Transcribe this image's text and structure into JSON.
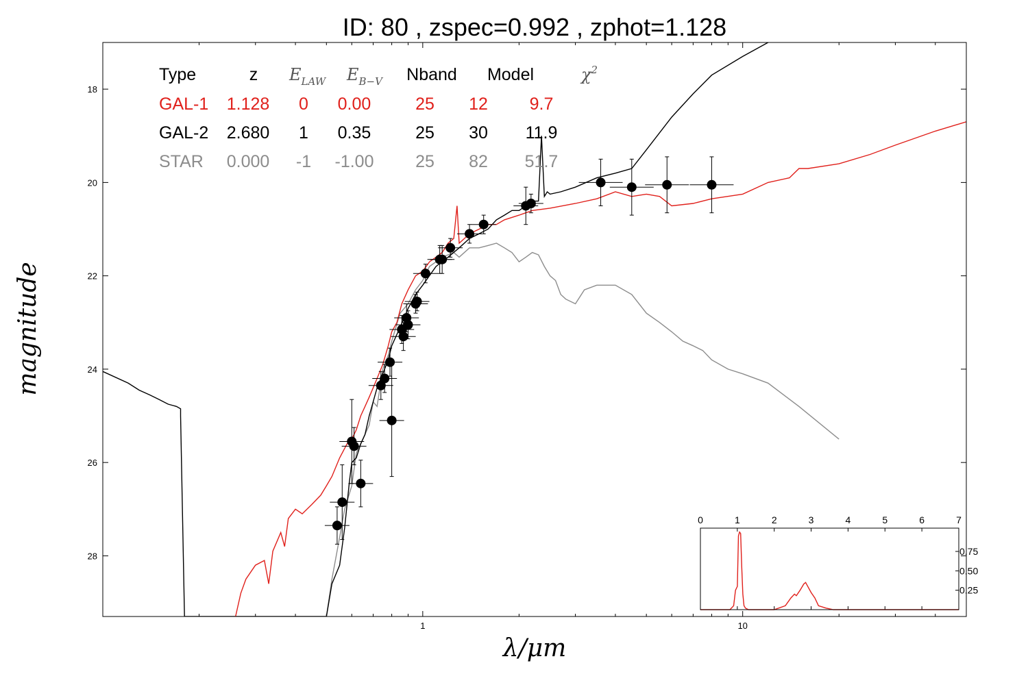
{
  "title": "ID:  80    , zspec=0.992 , zphot=1.128",
  "colors": {
    "gal1": "#e0201b",
    "gal2": "#000000",
    "star": "#8c8c8c",
    "points": "#000000"
  },
  "chart_data": [
    {
      "type": "line",
      "title": "ID:  80    , zspec=0.992 , zphot=1.128",
      "xlabel": "λ/μm",
      "ylabel": "magnitude",
      "xscale": "log",
      "xlim": [
        0.1,
        50
      ],
      "ylim": [
        29.3,
        17.0
      ],
      "x_ticks": [
        {
          "value": 1,
          "label": "1"
        },
        {
          "value": 10,
          "label": "10"
        }
      ],
      "y_ticks": [
        {
          "value": 18,
          "label": "18"
        },
        {
          "value": 20,
          "label": "20"
        },
        {
          "value": 22,
          "label": "22"
        },
        {
          "value": 24,
          "label": "24"
        },
        {
          "value": 26,
          "label": "26"
        },
        {
          "value": 28,
          "label": "28"
        }
      ],
      "grid": false,
      "legend_table": {
        "headers": [
          "Type",
          "z",
          "E_LAW",
          "E_B-V",
          "Nband",
          "Model",
          "χ²"
        ],
        "rows": [
          {
            "type": "GAL-1",
            "z": "1.128",
            "elaw": "0",
            "ebv": "0.00",
            "nband": "25",
            "model": "12",
            "chi2": "9.7",
            "color": "#e0201b"
          },
          {
            "type": "GAL-2",
            "z": "2.680",
            "elaw": "1",
            "ebv": "0.35",
            "nband": "25",
            "model": "30",
            "chi2": "11.9",
            "color": "#000000"
          },
          {
            "type": "STAR",
            "z": "0.000",
            "elaw": "-1",
            "ebv": "-1.00",
            "nband": "25",
            "model": "82",
            "chi2": "51.7",
            "color": "#8c8c8c"
          }
        ]
      },
      "series": [
        {
          "name": "GAL-1",
          "color": "#e0201b",
          "x": [
            0.26,
            0.27,
            0.28,
            0.3,
            0.32,
            0.33,
            0.34,
            0.36,
            0.37,
            0.38,
            0.4,
            0.42,
            0.45,
            0.48,
            0.5,
            0.52,
            0.55,
            0.58,
            0.6,
            0.62,
            0.64,
            0.66,
            0.68,
            0.7,
            0.72,
            0.75,
            0.78,
            0.8,
            0.83,
            0.86,
            0.9,
            0.95,
            1.0,
            1.05,
            1.1,
            1.15,
            1.2,
            1.25,
            1.28,
            1.3,
            1.35,
            1.4,
            1.5,
            1.6,
            1.7,
            1.8,
            2.0,
            2.2,
            2.5,
            3.0,
            3.5,
            4.0,
            4.5,
            5.0,
            5.5,
            6.0,
            7.0,
            8.0,
            10.0,
            12.0,
            14.0,
            15.0,
            16.0,
            20.0,
            25.0,
            30.0,
            40.0,
            50.0
          ],
          "y": [
            29.3,
            28.8,
            28.5,
            28.2,
            28.1,
            28.6,
            27.9,
            27.5,
            27.8,
            27.2,
            27.0,
            27.1,
            26.9,
            26.7,
            26.5,
            26.3,
            25.9,
            25.6,
            25.5,
            25.3,
            25.0,
            24.8,
            24.6,
            24.4,
            24.2,
            23.9,
            23.5,
            23.2,
            23.0,
            22.6,
            22.3,
            22.0,
            21.9,
            21.7,
            21.6,
            21.5,
            21.3,
            21.2,
            20.5,
            21.3,
            21.2,
            21.1,
            21.0,
            20.9,
            20.9,
            20.8,
            20.7,
            20.6,
            20.55,
            20.45,
            20.35,
            20.2,
            20.3,
            20.25,
            20.3,
            20.5,
            20.45,
            20.35,
            20.25,
            20.0,
            19.9,
            19.7,
            19.7,
            19.6,
            19.4,
            19.2,
            18.9,
            18.7
          ]
        },
        {
          "name": "GAL-2",
          "color": "#000000",
          "x": [
            0.1,
            0.12,
            0.13,
            0.14,
            0.15,
            0.16,
            0.17,
            0.175,
            0.175,
            0.18,
            0.19,
            0.5,
            0.52,
            0.55,
            0.57,
            0.59,
            0.6,
            0.62,
            0.64,
            0.66,
            0.68,
            0.7,
            0.72,
            0.75,
            0.78,
            0.8,
            0.85,
            0.9,
            0.95,
            1.0,
            1.1,
            1.2,
            1.3,
            1.4,
            1.5,
            1.6,
            1.7,
            1.8,
            1.9,
            2.0,
            2.1,
            2.2,
            2.3,
            2.35,
            2.4,
            2.45,
            2.5,
            2.7,
            3.0,
            3.5,
            4.0,
            4.5,
            5.0,
            6.0,
            7.0,
            8.0,
            10.0,
            12.0,
            14.0,
            16.0,
            18.0,
            20.0,
            22.0
          ],
          "y": [
            24.05,
            24.3,
            24.45,
            24.55,
            24.65,
            24.75,
            24.8,
            24.85,
            25.0,
            29.3,
            29.3,
            29.3,
            28.6,
            28.2,
            27.4,
            26.4,
            26.0,
            25.9,
            25.6,
            25.4,
            25.0,
            24.7,
            24.4,
            24.1,
            23.8,
            23.5,
            23.1,
            22.7,
            22.4,
            22.2,
            21.8,
            21.6,
            21.4,
            21.2,
            21.1,
            21.0,
            20.8,
            20.7,
            20.6,
            20.6,
            20.5,
            20.4,
            20.4,
            19.0,
            20.3,
            20.2,
            20.25,
            20.2,
            20.1,
            19.9,
            19.8,
            19.7,
            19.3,
            18.6,
            18.1,
            17.7,
            17.3,
            17.0,
            16.9,
            16.8,
            16.7,
            16.6,
            16.5
          ]
        },
        {
          "name": "STAR",
          "color": "#8c8c8c",
          "x": [
            0.5,
            0.52,
            0.55,
            0.57,
            0.6,
            0.62,
            0.65,
            0.68,
            0.7,
            0.72,
            0.75,
            0.78,
            0.8,
            0.85,
            0.9,
            0.95,
            1.0,
            1.05,
            1.1,
            1.15,
            1.2,
            1.25,
            1.3,
            1.4,
            1.5,
            1.6,
            1.7,
            1.8,
            1.9,
            2.0,
            2.1,
            2.2,
            2.3,
            2.4,
            2.5,
            2.6,
            2.7,
            2.8,
            3.0,
            3.2,
            3.5,
            4.0,
            4.5,
            5.0,
            5.5,
            6.0,
            6.5,
            7.0,
            7.5,
            8.0,
            9.0,
            10.0,
            12.0,
            15.0,
            20.0
          ],
          "y": [
            29.3,
            28.5,
            27.6,
            27.0,
            26.5,
            25.8,
            25.5,
            25.2,
            24.7,
            24.8,
            24.0,
            23.7,
            23.4,
            22.8,
            22.6,
            22.3,
            22.1,
            21.8,
            21.7,
            21.6,
            21.55,
            21.5,
            21.6,
            21.4,
            21.4,
            21.35,
            21.3,
            21.4,
            21.5,
            21.7,
            21.6,
            21.5,
            21.55,
            21.8,
            22.0,
            22.1,
            22.4,
            22.5,
            22.6,
            22.3,
            22.2,
            22.2,
            22.4,
            22.8,
            23.0,
            23.2,
            23.4,
            23.5,
            23.6,
            23.8,
            24.0,
            24.1,
            24.3,
            24.8,
            25.5
          ]
        }
      ],
      "points": [
        {
          "x": 0.54,
          "y": 27.35,
          "ey": 0.4
        },
        {
          "x": 0.56,
          "y": 26.85,
          "ey": 0.8
        },
        {
          "x": 0.6,
          "y": 25.55,
          "ey": 0.9
        },
        {
          "x": 0.61,
          "y": 25.65,
          "ey": 0.4
        },
        {
          "x": 0.64,
          "y": 26.45,
          "ey": 0.5
        },
        {
          "x": 0.74,
          "y": 24.35,
          "ey": 0.3
        },
        {
          "x": 0.76,
          "y": 24.2,
          "ey": 0.3
        },
        {
          "x": 0.79,
          "y": 23.85,
          "ey": 0.3
        },
        {
          "x": 0.8,
          "y": 25.1,
          "ey": 1.2
        },
        {
          "x": 0.86,
          "y": 23.15,
          "ey": 0.3
        },
        {
          "x": 0.87,
          "y": 23.3,
          "ey": 0.3
        },
        {
          "x": 0.89,
          "y": 22.9,
          "ey": 0.3
        },
        {
          "x": 0.9,
          "y": 23.05,
          "ey": 0.3
        },
        {
          "x": 0.95,
          "y": 22.6,
          "ey": 0.2
        },
        {
          "x": 0.96,
          "y": 22.55,
          "ey": 0.2
        },
        {
          "x": 1.02,
          "y": 21.95,
          "ey": 0.2
        },
        {
          "x": 1.13,
          "y": 21.65,
          "ey": 0.3
        },
        {
          "x": 1.15,
          "y": 21.65,
          "ey": 0.3
        },
        {
          "x": 1.22,
          "y": 21.4,
          "ey": 0.2
        },
        {
          "x": 1.4,
          "y": 21.1,
          "ey": 0.2
        },
        {
          "x": 1.55,
          "y": 20.9,
          "ey": 0.2
        },
        {
          "x": 2.1,
          "y": 20.5,
          "ey": 0.4
        },
        {
          "x": 2.18,
          "y": 20.45,
          "ey": 0.2
        },
        {
          "x": 3.6,
          "y": 20.0,
          "ey": 0.5
        },
        {
          "x": 4.5,
          "y": 20.1,
          "ey": 0.6
        },
        {
          "x": 5.8,
          "y": 20.05,
          "ey": 0.6
        },
        {
          "x": 8.0,
          "y": 20.05,
          "ey": 0.6
        }
      ]
    },
    {
      "type": "line",
      "name": "PDF(z) inset",
      "xlim": [
        0,
        7
      ],
      "ylim": [
        0,
        1.05
      ],
      "x_ticks": [
        "0",
        "1",
        "2",
        "3",
        "4",
        "5",
        "6",
        "7"
      ],
      "y_ticks": [
        "0.25",
        "0.50",
        "0.75"
      ],
      "series": [
        {
          "color": "#e0201b",
          "x": [
            0,
            0.8,
            0.9,
            0.95,
            1.0,
            1.03,
            1.06,
            1.09,
            1.12,
            1.15,
            1.18,
            1.22,
            1.3,
            1.4,
            2.0,
            2.3,
            2.45,
            2.55,
            2.6,
            2.7,
            2.8,
            2.85,
            3.0,
            3.1,
            3.2,
            3.4,
            3.6,
            4.0,
            7.0
          ],
          "y": [
            0,
            0,
            0.05,
            0.25,
            0.3,
            0.95,
            1.0,
            0.98,
            0.55,
            0.2,
            0.05,
            0.02,
            0.0,
            0.0,
            0.0,
            0.05,
            0.15,
            0.2,
            0.18,
            0.25,
            0.33,
            0.35,
            0.22,
            0.15,
            0.05,
            0.02,
            0.0,
            0.0,
            0.0
          ]
        }
      ]
    }
  ]
}
